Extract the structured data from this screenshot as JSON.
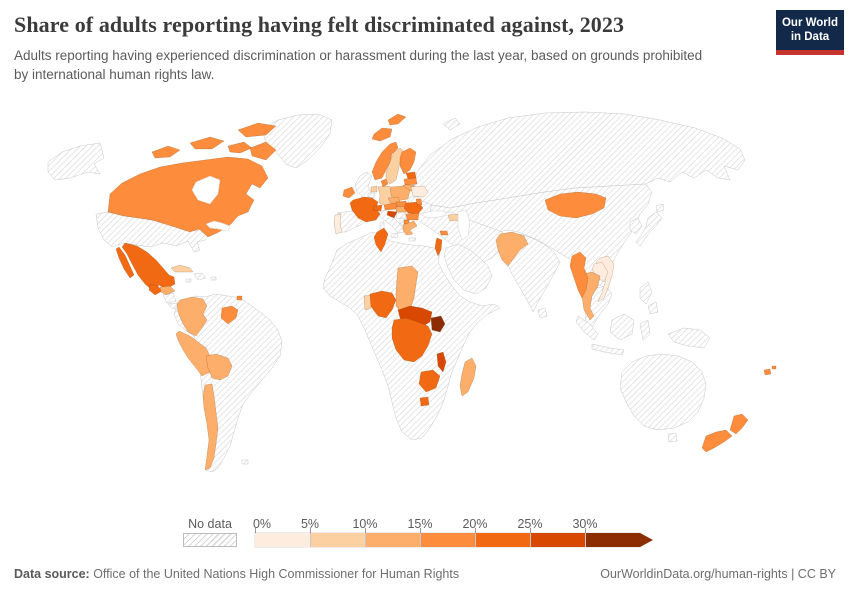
{
  "header": {
    "title": "Share of adults reporting having felt discriminated against, 2023",
    "subtitle": "Adults reporting having experienced discrimination or harassment during the last year, based on grounds prohibited by international human rights law.",
    "logo": {
      "line1": "Our World",
      "line2": "in Data",
      "bg": "#12294a",
      "accent": "#c5342d"
    }
  },
  "legend": {
    "no_data_label": "No data",
    "ticks": [
      "0%",
      "5%",
      "10%",
      "15%",
      "20%",
      "25%",
      "30%"
    ],
    "bands": [
      {
        "range": "0-5%",
        "color": "#feedde"
      },
      {
        "range": "5-10%",
        "color": "#fdd0a2"
      },
      {
        "range": "10-15%",
        "color": "#fdae6b"
      },
      {
        "range": "15-20%",
        "color": "#fd8d3c"
      },
      {
        "range": "20-25%",
        "color": "#f16913"
      },
      {
        "range": "25-30%",
        "color": "#d94801"
      },
      {
        "range": "30%+",
        "color": "#8c2d04"
      }
    ]
  },
  "footer": {
    "source_label": "Data source:",
    "source_text": " Office of the United Nations High Commissioner for Human Rights",
    "right_text": "OurWorldinData.org/human-rights | CC BY"
  },
  "map": {
    "band_colors": {
      "0-5": "#feedde",
      "5-10": "#fdd0a2",
      "10-15": "#fdae6b",
      "15-20": "#fd8d3c",
      "20-25": "#f16913",
      "25-30": "#d94801",
      "30+": "#8c2d04"
    },
    "countries": {
      "belarus": "0-5",
      "portugal": "0-5",
      "laos": "0-5",
      "vietnam": "0-5",
      "sweden": "5-10",
      "germany": "5-10",
      "netherlands": "5-10",
      "cuba": "5-10",
      "georgia": "5-10",
      "benin": "5-10",
      "colombia": "10-15",
      "peru": "10-15",
      "bolivia": "10-15",
      "chile": "10-15",
      "honduras": "10-15",
      "poland": "10-15",
      "lithuania": "10-15",
      "czechia": "10-15",
      "hungary": "10-15",
      "greece": "10-15",
      "chad": "10-15",
      "madagascar": "10-15",
      "pakistan": "10-15",
      "thailand": "10-15",
      "canada": "15-20",
      "iceland": "15-20",
      "norway": "15-20",
      "finland": "15-20",
      "denmark": "15-20",
      "ireland": "15-20",
      "latvia": "15-20",
      "austria": "15-20",
      "slovakia": "15-20",
      "bulgaria": "15-20",
      "north-macedonia": "15-20",
      "moldova": "15-20",
      "guyana": "15-20",
      "trinidad": "15-20",
      "mongolia": "15-20",
      "myanmar": "15-20",
      "new-zealand": "15-20",
      "fiji": "15-20",
      "cyprus": "15-20",
      "mexico": "20-25",
      "guatemala": "20-25",
      "france": "20-25",
      "switzerland": "20-25",
      "estonia": "20-25",
      "romania": "20-25",
      "tunisia": "20-25",
      "israel": "20-25",
      "nigeria": "20-25",
      "drc": "20-25",
      "zimbabwe": "20-25",
      "lesotho": "20-25",
      "central-african-republic": "25-30",
      "malawi": "25-30",
      "slovenia": "25-30",
      "uganda": "30+"
    }
  },
  "chart_data": {
    "type": "choropleth",
    "title": "Share of adults reporting having felt discriminated against, 2023",
    "subtitle": "Adults reporting having experienced discrimination or harassment during the last year, based on grounds prohibited by international human rights law.",
    "year": 2023,
    "unit": "share of adults (%)",
    "legend_bins": [
      "No data",
      "0-5%",
      "5-10%",
      "10-15%",
      "15-20%",
      "20-25%",
      "25-30%",
      "30%+"
    ],
    "values_by_range": {
      "0-5%": [
        "Belarus",
        "Portugal",
        "Laos",
        "Vietnam"
      ],
      "5-10%": [
        "Sweden",
        "Germany",
        "Netherlands",
        "Cuba",
        "Georgia",
        "Benin"
      ],
      "10-15%": [
        "Colombia",
        "Peru",
        "Bolivia",
        "Chile",
        "Honduras",
        "Poland",
        "Lithuania",
        "Czechia",
        "Hungary",
        "Greece",
        "Chad",
        "Madagascar",
        "Pakistan",
        "Thailand"
      ],
      "15-20%": [
        "Canada",
        "Iceland",
        "Norway",
        "Finland",
        "Denmark",
        "Ireland",
        "Latvia",
        "Austria",
        "Slovakia",
        "Bulgaria",
        "North Macedonia",
        "Moldova",
        "Guyana",
        "Trinidad and Tobago",
        "Mongolia",
        "Myanmar",
        "New Zealand",
        "Fiji",
        "Cyprus"
      ],
      "20-25%": [
        "Mexico",
        "Guatemala",
        "France",
        "Switzerland",
        "Estonia",
        "Romania",
        "Tunisia",
        "Israel",
        "Nigeria",
        "Democratic Republic of Congo",
        "Zimbabwe",
        "Lesotho"
      ],
      "25-30%": [
        "Central African Republic",
        "Malawi",
        "Slovenia"
      ],
      "30%+": [
        "Uganda"
      ]
    },
    "no_data_shown_hatched": [
      "United States",
      "Greenland",
      "Brazil",
      "Argentina",
      "Venezuela",
      "Spain",
      "United Kingdom",
      "Italy",
      "Ukraine",
      "Russia",
      "Turkey",
      "Saudi Arabia",
      "Egypt",
      "Algeria",
      "South Africa",
      "Kenya",
      "India",
      "China",
      "Japan",
      "Indonesia",
      "Australia"
    ]
  }
}
